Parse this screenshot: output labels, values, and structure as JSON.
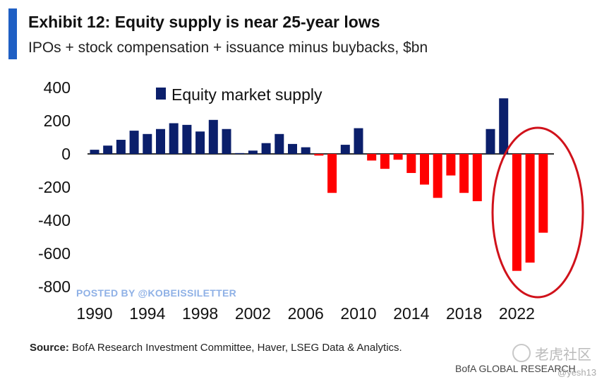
{
  "header": {
    "title": "Exhibit 12: Equity supply is near 25-year lows",
    "subtitle": "IPOs + stock compensation + issuance minus buybacks, $bn"
  },
  "watermark": "POSTED BY @KOBEISSILETTER",
  "source": {
    "label": "Source:",
    "text": " BofA Research Investment Committee, Haver, LSEG Data & Analytics."
  },
  "footer": "BofA GLOBAL RESEARCH",
  "overlay": {
    "cn_text": "老虎社区",
    "handle": "@yesh13"
  },
  "colors": {
    "positive": "#0b1f6b",
    "negative": "#ff0000",
    "highlight_circle": "#d0121b",
    "accent": "#1f5fc4"
  },
  "chart_data": {
    "type": "bar",
    "title": "Exhibit 12: Equity supply is near 25-year lows",
    "subtitle": "IPOs + stock compensation + issuance minus buybacks, $bn",
    "xlabel": "",
    "ylabel": "",
    "ylim": [
      -800,
      400
    ],
    "yticks": [
      400,
      200,
      0,
      -200,
      -400,
      -600,
      -800
    ],
    "xticks": [
      "1990",
      "1994",
      "1998",
      "2002",
      "2006",
      "2010",
      "2014",
      "2018",
      "2022"
    ],
    "legend": {
      "position": "top-left",
      "entries": [
        "Equity market supply"
      ]
    },
    "grid": false,
    "series": [
      {
        "name": "Equity market supply",
        "x": [
          1990,
          1991,
          1992,
          1993,
          1994,
          1995,
          1996,
          1997,
          1998,
          1999,
          2000,
          2001,
          2002,
          2003,
          2004,
          2005,
          2006,
          2007,
          2008,
          2009,
          2010,
          2011,
          2012,
          2013,
          2014,
          2015,
          2016,
          2017,
          2018,
          2019,
          2020,
          2021,
          2022,
          2023,
          2024
        ],
        "values": [
          25,
          50,
          85,
          140,
          120,
          150,
          185,
          175,
          135,
          205,
          150,
          5,
          20,
          65,
          120,
          60,
          40,
          -10,
          -235,
          55,
          155,
          -40,
          -90,
          -35,
          -115,
          -185,
          -265,
          -130,
          -235,
          -285,
          150,
          335,
          -705,
          -655,
          -475
        ]
      }
    ],
    "annotations": [
      "red circle highlighting 2022-2024 bars"
    ]
  }
}
